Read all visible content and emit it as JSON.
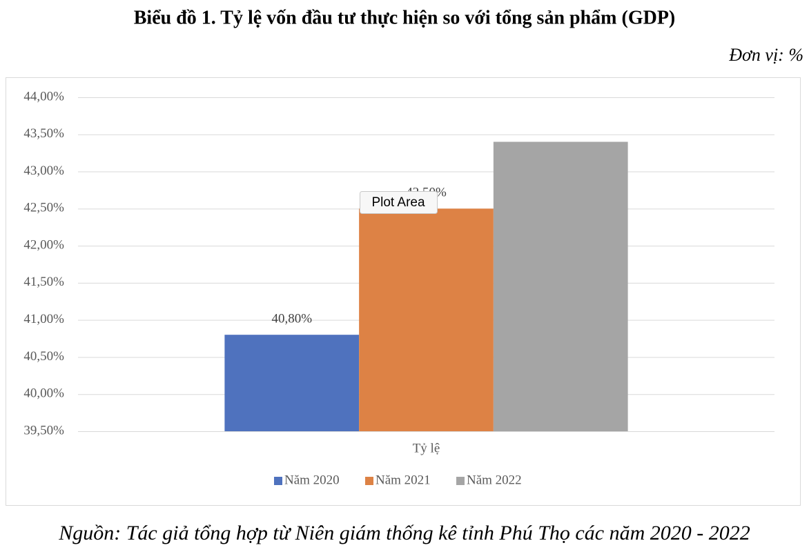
{
  "chart_data": {
    "type": "bar",
    "title": "Biểu đồ 1. Tỷ lệ vốn đầu tư thực hiện so với tổng sản phẩm (GDP)",
    "unit_note": "Đơn vị: %",
    "source": "Nguồn: Tác giả tổng hợp từ Niên giám thống kê tỉnh Phú Thọ các năm 2020 - 2022",
    "tooltip": "Plot Area",
    "categories": [
      "Tỷ lệ"
    ],
    "series": [
      {
        "name": "Năm 2020",
        "color": "#4f72be",
        "values": [
          40.8
        ],
        "value_labels": [
          "40,80%"
        ]
      },
      {
        "name": "Năm 2021",
        "color": "#dd8245",
        "values": [
          42.5
        ],
        "value_labels": [
          "42,50%"
        ]
      },
      {
        "name": "Năm 2022",
        "color": "#a5a5a5",
        "values": [
          43.4
        ]
      }
    ],
    "ylim": [
      39.5,
      44
    ],
    "yticks": [
      {
        "value": 39.5,
        "label": "39,50%"
      },
      {
        "value": 40,
        "label": "40,00%"
      },
      {
        "value": 40.5,
        "label": "40,50%"
      },
      {
        "value": 41,
        "label": "41,00%"
      },
      {
        "value": 41.5,
        "label": "41,50%"
      },
      {
        "value": 42,
        "label": "42,00%"
      },
      {
        "value": 42.5,
        "label": "42,50%"
      },
      {
        "value": 43,
        "label": "43,00%"
      },
      {
        "value": 43.5,
        "label": "43,50%"
      },
      {
        "value": 44,
        "label": "44,00%"
      }
    ],
    "grid": true,
    "legend": "bottom"
  }
}
